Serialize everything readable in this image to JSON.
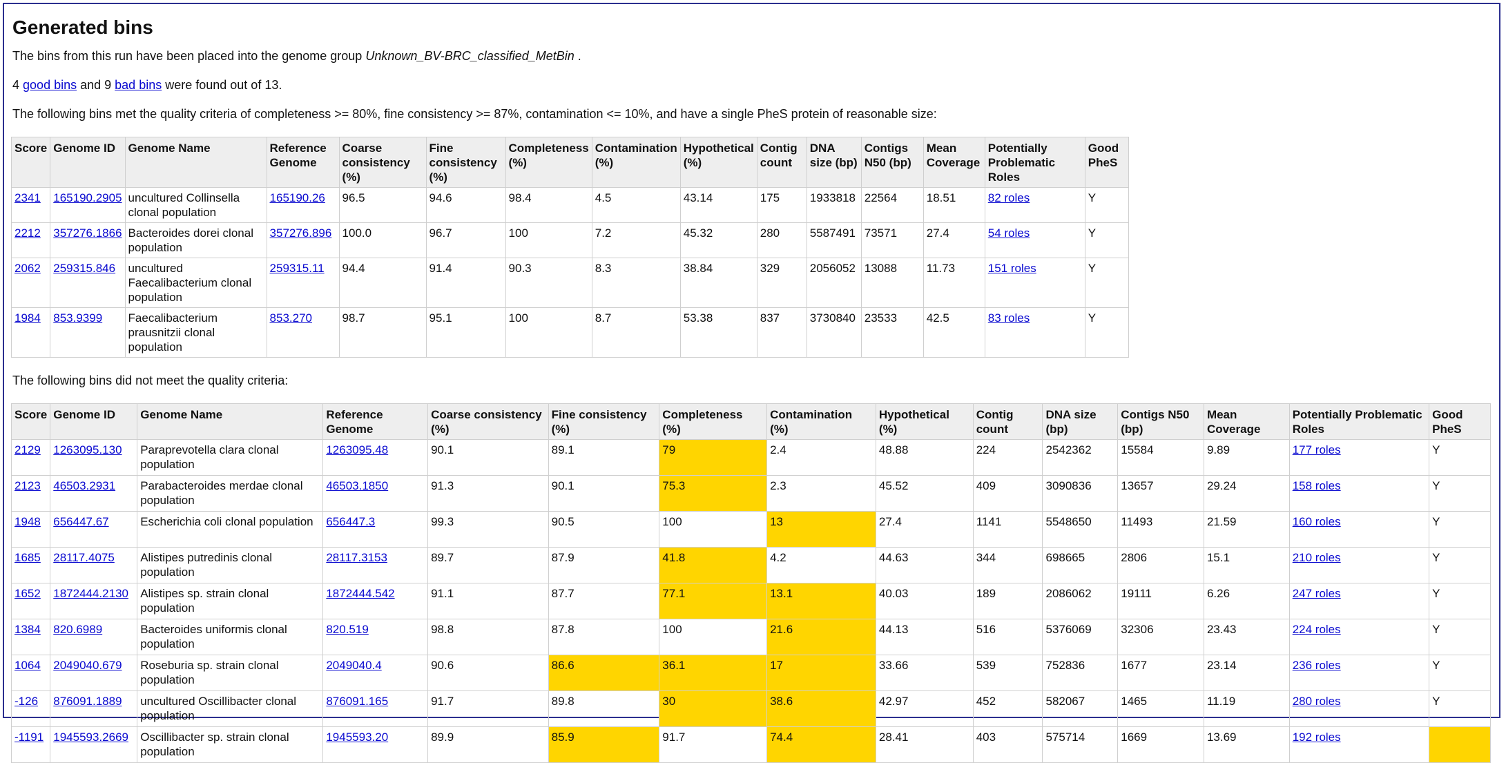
{
  "title": "Generated bins",
  "intro": {
    "prefix": "The bins from this run have been placed into the genome group ",
    "group": "Unknown_BV-BRC_classified_MetBin",
    "suffix": " ."
  },
  "summary": {
    "good_count": "4",
    "good_link": "good bins",
    "mid": " and 9 ",
    "bad_link": "bad bins",
    "suffix": " were found out of 13."
  },
  "good_caption": "The following bins met the quality criteria of completeness >= 80%, fine consistency >= 87%, contamination <= 10%, and have a single PheS protein of reasonable size:",
  "bad_caption": "The following bins did not meet the quality criteria:",
  "headers": [
    "Score",
    "Genome ID",
    "Genome Name",
    "Reference Genome",
    "Coarse consistency (%)",
    "Fine consistency (%)",
    "Completeness (%)",
    "Contamination (%)",
    "Hypothetical (%)",
    "Contig count",
    "DNA size (bp)",
    "Contigs N50 (bp)",
    "Mean Coverage",
    "Potentially Problematic Roles",
    "Good PheS"
  ],
  "highlight_color": "#ffd500",
  "good_bins": [
    {
      "score": "2341",
      "genome_id": "165190.2905",
      "genome_name": "uncultured Collinsella clonal population",
      "ref": "165190.26",
      "coarse": "96.5",
      "fine": "94.6",
      "completeness": "98.4",
      "contamination": "4.5",
      "hypothetical": "43.14",
      "contigs": "175",
      "dna_size": "1933818",
      "n50": "22564",
      "coverage": "18.51",
      "roles": "82 roles",
      "phes": "Y",
      "flags": []
    },
    {
      "score": "2212",
      "genome_id": "357276.1866",
      "genome_name": "Bacteroides dorei clonal population",
      "ref": "357276.896",
      "coarse": "100.0",
      "fine": "96.7",
      "completeness": "100",
      "contamination": "7.2",
      "hypothetical": "45.32",
      "contigs": "280",
      "dna_size": "5587491",
      "n50": "73571",
      "coverage": "27.4",
      "roles": "54 roles",
      "phes": "Y",
      "flags": []
    },
    {
      "score": "2062",
      "genome_id": "259315.846",
      "genome_name": "uncultured Faecalibacterium clonal population",
      "ref": "259315.11",
      "coarse": "94.4",
      "fine": "91.4",
      "completeness": "90.3",
      "contamination": "8.3",
      "hypothetical": "38.84",
      "contigs": "329",
      "dna_size": "2056052",
      "n50": "13088",
      "coverage": "11.73",
      "roles": "151 roles",
      "phes": "Y",
      "flags": []
    },
    {
      "score": "1984",
      "genome_id": "853.9399",
      "genome_name": "Faecalibacterium prausnitzii clonal population",
      "ref": "853.270",
      "coarse": "98.7",
      "fine": "95.1",
      "completeness": "100",
      "contamination": "8.7",
      "hypothetical": "53.38",
      "contigs": "837",
      "dna_size": "3730840",
      "n50": "23533",
      "coverage": "42.5",
      "roles": "83 roles",
      "phes": "Y",
      "flags": []
    }
  ],
  "bad_bins": [
    {
      "score": "2129",
      "genome_id": "1263095.130",
      "genome_name": "Paraprevotella clara clonal population",
      "ref": "1263095.48",
      "coarse": "90.1",
      "fine": "89.1",
      "completeness": "79",
      "contamination": "2.4",
      "hypothetical": "48.88",
      "contigs": "224",
      "dna_size": "2542362",
      "n50": "15584",
      "coverage": "9.89",
      "roles": "177 roles",
      "phes": "Y",
      "flags": [
        "completeness"
      ]
    },
    {
      "score": "2123",
      "genome_id": "46503.2931",
      "genome_name": "Parabacteroides merdae clonal population",
      "ref": "46503.1850",
      "coarse": "91.3",
      "fine": "90.1",
      "completeness": "75.3",
      "contamination": "2.3",
      "hypothetical": "45.52",
      "contigs": "409",
      "dna_size": "3090836",
      "n50": "13657",
      "coverage": "29.24",
      "roles": "158 roles",
      "phes": "Y",
      "flags": [
        "completeness"
      ]
    },
    {
      "score": "1948",
      "genome_id": "656447.67",
      "genome_name": "Escherichia coli clonal population",
      "ref": "656447.3",
      "coarse": "99.3",
      "fine": "90.5",
      "completeness": "100",
      "contamination": "13",
      "hypothetical": "27.4",
      "contigs": "1141",
      "dna_size": "5548650",
      "n50": "11493",
      "coverage": "21.59",
      "roles": "160 roles",
      "phes": "Y",
      "flags": [
        "contamination"
      ]
    },
    {
      "score": "1685",
      "genome_id": "28117.4075",
      "genome_name": "Alistipes putredinis clonal population",
      "ref": "28117.3153",
      "coarse": "89.7",
      "fine": "87.9",
      "completeness": "41.8",
      "contamination": "4.2",
      "hypothetical": "44.63",
      "contigs": "344",
      "dna_size": "698665",
      "n50": "2806",
      "coverage": "15.1",
      "roles": "210 roles",
      "phes": "Y",
      "flags": [
        "completeness"
      ]
    },
    {
      "score": "1652",
      "genome_id": "1872444.2130",
      "genome_name": "Alistipes sp. strain clonal population",
      "ref": "1872444.542",
      "coarse": "91.1",
      "fine": "87.7",
      "completeness": "77.1",
      "contamination": "13.1",
      "hypothetical": "40.03",
      "contigs": "189",
      "dna_size": "2086062",
      "n50": "19111",
      "coverage": "6.26",
      "roles": "247 roles",
      "phes": "Y",
      "flags": [
        "completeness",
        "contamination"
      ]
    },
    {
      "score": "1384",
      "genome_id": "820.6989",
      "genome_name": "Bacteroides uniformis clonal population",
      "ref": "820.519",
      "coarse": "98.8",
      "fine": "87.8",
      "completeness": "100",
      "contamination": "21.6",
      "hypothetical": "44.13",
      "contigs": "516",
      "dna_size": "5376069",
      "n50": "32306",
      "coverage": "23.43",
      "roles": "224 roles",
      "phes": "Y",
      "flags": [
        "contamination"
      ]
    },
    {
      "score": "1064",
      "genome_id": "2049040.679",
      "genome_name": "Roseburia sp. strain clonal population",
      "ref": "2049040.4",
      "coarse": "90.6",
      "fine": "86.6",
      "completeness": "36.1",
      "contamination": "17",
      "hypothetical": "33.66",
      "contigs": "539",
      "dna_size": "752836",
      "n50": "1677",
      "coverage": "23.14",
      "roles": "236 roles",
      "phes": "Y",
      "flags": [
        "fine",
        "completeness",
        "contamination"
      ]
    },
    {
      "score": "-126",
      "genome_id": "876091.1889",
      "genome_name": "uncultured Oscillibacter clonal population",
      "ref": "876091.165",
      "coarse": "91.7",
      "fine": "89.8",
      "completeness": "30",
      "contamination": "38.6",
      "hypothetical": "42.97",
      "contigs": "452",
      "dna_size": "582067",
      "n50": "1465",
      "coverage": "11.19",
      "roles": "280 roles",
      "phes": "Y",
      "flags": [
        "completeness",
        "contamination"
      ]
    },
    {
      "score": "-1191",
      "genome_id": "1945593.2669",
      "genome_name": "Oscillibacter sp. strain clonal population",
      "ref": "1945593.20",
      "coarse": "89.9",
      "fine": "85.9",
      "completeness": "91.7",
      "contamination": "74.4",
      "hypothetical": "28.41",
      "contigs": "403",
      "dna_size": "575714",
      "n50": "1669",
      "coverage": "13.69",
      "roles": "192 roles",
      "phes": "",
      "flags": [
        "fine",
        "contamination",
        "phes"
      ]
    }
  ]
}
